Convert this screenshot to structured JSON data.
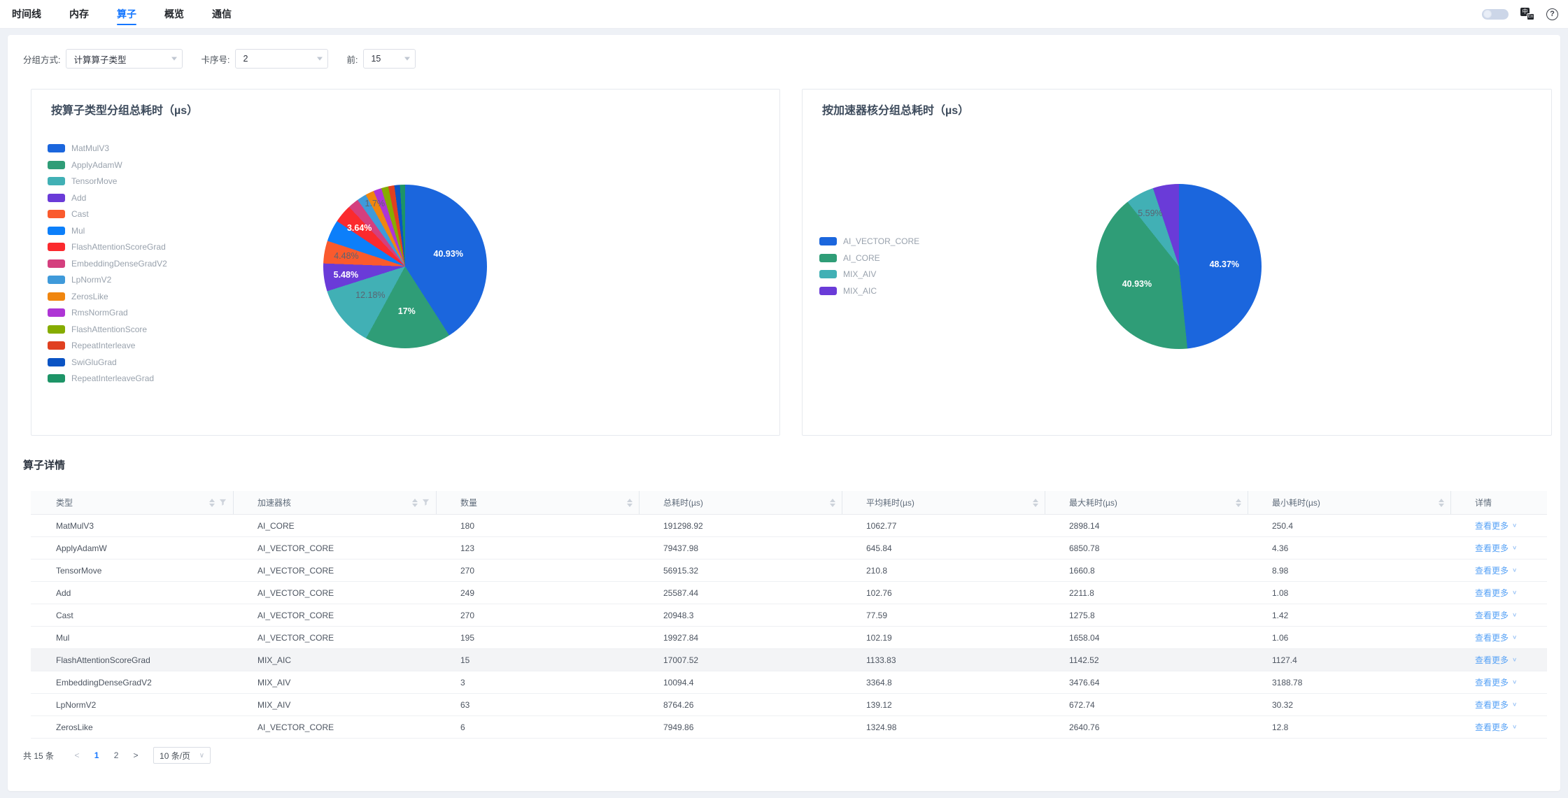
{
  "tabs": {
    "items": [
      {
        "label": "时间线",
        "active": false
      },
      {
        "label": "内存",
        "active": false
      },
      {
        "label": "算子",
        "active": true
      },
      {
        "label": "概览",
        "active": false
      },
      {
        "label": "通信",
        "active": false
      }
    ]
  },
  "topbar_right": {
    "toggle_state": "off",
    "lang_icon_zh": "中",
    "lang_icon_en": "En",
    "help_icon": "?"
  },
  "filters": {
    "group_label": "分组方式:",
    "group_value": "计算算子类型",
    "card_label": "卡序号:",
    "card_value": "2",
    "top_label": "前:",
    "top_value": "15"
  },
  "colors": {
    "accent": "#1677ff",
    "link": "#57a2f6"
  },
  "chart_data": [
    {
      "type": "pie",
      "title": "按算子类型分组总耗时（µs）",
      "legend_position": "left",
      "slices": [
        {
          "name": "MatMulV3",
          "value": 40.93,
          "color": "#1b66dd",
          "label": "40.93%",
          "label_color": "#ffffff"
        },
        {
          "name": "ApplyAdamW",
          "value": 17.0,
          "color": "#2f9d77",
          "label": "17%",
          "label_color": "#ffffff"
        },
        {
          "name": "TensorMove",
          "value": 12.18,
          "color": "#41b0b5",
          "label": "12.18%",
          "label_color": "#5a6472"
        },
        {
          "name": "Add",
          "value": 5.48,
          "color": "#6a3bd8",
          "label": "5.48%",
          "label_color": "#ffffff"
        },
        {
          "name": "Cast",
          "value": 4.48,
          "color": "#fa5a2d",
          "label": "4.48%",
          "label_color": "#5a6472"
        },
        {
          "name": "Mul",
          "value": 4.26,
          "color": "#0c7ffa",
          "label": null,
          "label_color": null
        },
        {
          "name": "FlashAttentionScoreGrad",
          "value": 3.64,
          "color": "#fb2a2e",
          "label": "3.64%",
          "label_color": "#ffffff"
        },
        {
          "name": "EmbeddingDenseGradV2",
          "value": 2.16,
          "color": "#d43f7e",
          "label": null,
          "label_color": null
        },
        {
          "name": "LpNormV2",
          "value": 1.87,
          "color": "#3f9ada",
          "label": null,
          "label_color": null
        },
        {
          "name": "ZerosLike",
          "value": 1.7,
          "color": "#f0860f",
          "label": "1.7%",
          "label_color": "#5a6472"
        },
        {
          "name": "RmsNormGrad",
          "value": 1.6,
          "color": "#ae35d5",
          "label": null,
          "label_color": null
        },
        {
          "name": "FlashAttentionScore",
          "value": 1.38,
          "color": "#86ac00",
          "label": null,
          "label_color": null
        },
        {
          "name": "RepeatInterleave",
          "value": 1.2,
          "color": "#e04020",
          "label": null,
          "label_color": null
        },
        {
          "name": "SwiGluGrad",
          "value": 1.1,
          "color": "#0b54c4",
          "label": null,
          "label_color": null
        },
        {
          "name": "RepeatInterleaveGrad",
          "value": 1.02,
          "color": "#1d9467",
          "label": null,
          "label_color": null
        }
      ]
    },
    {
      "type": "pie",
      "title": "按加速器核分组总耗时（µs）",
      "legend_position": "left",
      "slices": [
        {
          "name": "AI_VECTOR_CORE",
          "value": 48.37,
          "color": "#1b66dd",
          "label": "48.37%",
          "label_color": "#ffffff"
        },
        {
          "name": "AI_CORE",
          "value": 40.93,
          "color": "#2f9d77",
          "label": "40.93%",
          "label_color": "#ffffff"
        },
        {
          "name": "MIX_AIV",
          "value": 5.59,
          "color": "#41b0b5",
          "label": "5.59%",
          "label_color": "#5a6472"
        },
        {
          "name": "MIX_AIC",
          "value": 5.11,
          "color": "#6a3bd8",
          "label": null,
          "label_color": null
        }
      ]
    }
  ],
  "table": {
    "section_title": "算子详情",
    "columns": [
      {
        "label": "类型",
        "sortable": true,
        "filterable": true
      },
      {
        "label": "加速器核",
        "sortable": true,
        "filterable": true
      },
      {
        "label": "数量",
        "sortable": true,
        "filterable": false
      },
      {
        "label": "总耗时(µs)",
        "sortable": true,
        "filterable": false
      },
      {
        "label": "平均耗时(µs)",
        "sortable": true,
        "filterable": false
      },
      {
        "label": "最大耗时(µs)",
        "sortable": true,
        "filterable": false
      },
      {
        "label": "最小耗时(µs)",
        "sortable": true,
        "filterable": false
      },
      {
        "label": "详情",
        "sortable": false,
        "filterable": false
      }
    ],
    "more_label": "查看更多",
    "highlighted_row_index": 6,
    "rows": [
      [
        "MatMulV3",
        "AI_CORE",
        "180",
        "191298.92",
        "1062.77",
        "2898.14",
        "250.4"
      ],
      [
        "ApplyAdamW",
        "AI_VECTOR_CORE",
        "123",
        "79437.98",
        "645.84",
        "6850.78",
        "4.36"
      ],
      [
        "TensorMove",
        "AI_VECTOR_CORE",
        "270",
        "56915.32",
        "210.8",
        "1660.8",
        "8.98"
      ],
      [
        "Add",
        "AI_VECTOR_CORE",
        "249",
        "25587.44",
        "102.76",
        "2211.8",
        "1.08"
      ],
      [
        "Cast",
        "AI_VECTOR_CORE",
        "270",
        "20948.3",
        "77.59",
        "1275.8",
        "1.42"
      ],
      [
        "Mul",
        "AI_VECTOR_CORE",
        "195",
        "19927.84",
        "102.19",
        "1658.04",
        "1.06"
      ],
      [
        "FlashAttentionScoreGrad",
        "MIX_AIC",
        "15",
        "17007.52",
        "1133.83",
        "1142.52",
        "1127.4"
      ],
      [
        "EmbeddingDenseGradV2",
        "MIX_AIV",
        "3",
        "10094.4",
        "3364.8",
        "3476.64",
        "3188.78"
      ],
      [
        "LpNormV2",
        "MIX_AIV",
        "63",
        "8764.26",
        "139.12",
        "672.74",
        "30.32"
      ],
      [
        "ZerosLike",
        "AI_VECTOR_CORE",
        "6",
        "7949.86",
        "1324.98",
        "2640.76",
        "12.8"
      ]
    ]
  },
  "pagination": {
    "total_label": "共 15 条",
    "prev_icon": "<",
    "next_icon": ">",
    "pages": [
      "1",
      "2"
    ],
    "active_page": "1",
    "page_size_label": "10 条/页",
    "page_size_chevron": "∨"
  }
}
